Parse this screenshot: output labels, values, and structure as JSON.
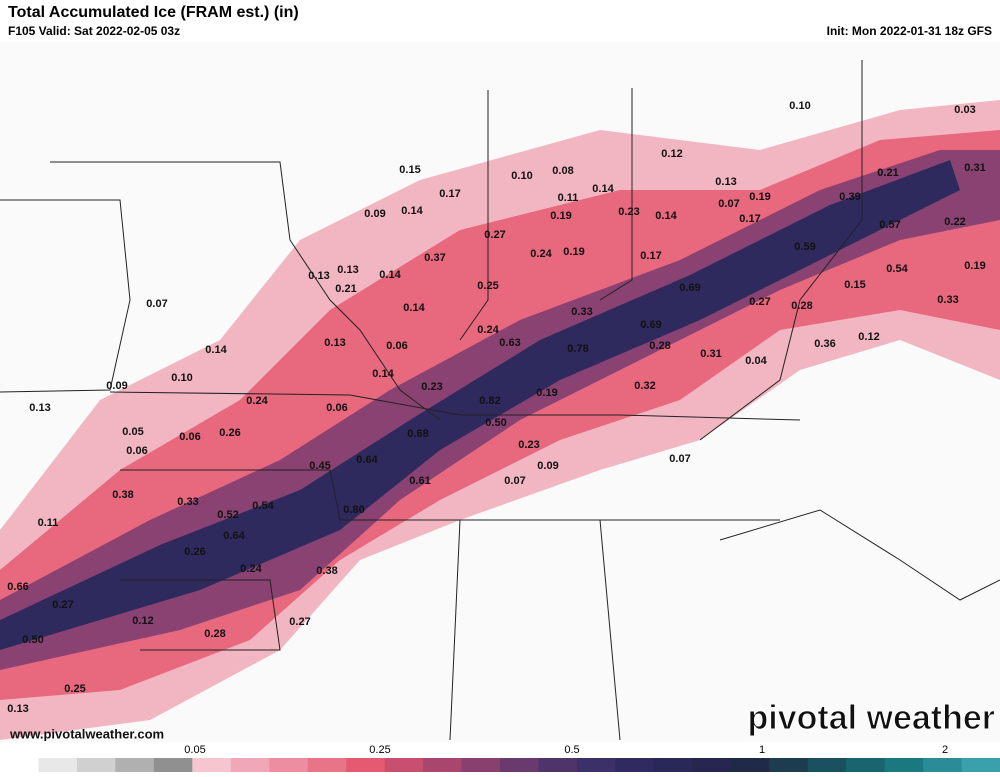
{
  "header": {
    "title": "Total Accumulated Ice (FRAM est.) (in)",
    "valid": "F105 Valid: Sat 2022-02-05 03z",
    "init": "Init: Mon 2022-01-31 18z GFS"
  },
  "map": {
    "labels": [
      "0.10",
      "0.03",
      "0.12",
      "0.15",
      "0.10",
      "0.08",
      "0.14",
      "0.13",
      "0.21",
      "0.31",
      "0.17",
      "0.11",
      "0.07",
      "0.19",
      "0.39",
      "0.09",
      "0.14",
      "0.19",
      "0.23",
      "0.14",
      "0.17",
      "0.57",
      "0.22",
      "0.27",
      "0.59",
      "0.37",
      "0.24",
      "0.19",
      "0.17",
      "0.13",
      "0.13",
      "0.14",
      "0.54",
      "0.19",
      "0.21",
      "0.25",
      "0.69",
      "0.15",
      "0.07",
      "0.14",
      "0.27",
      "0.28",
      "0.33",
      "0.33",
      "0.24",
      "0.69",
      "0.13",
      "0.06",
      "0.63",
      "0.28",
      "0.12",
      "0.14",
      "0.78",
      "0.36",
      "0.31",
      "0.04",
      "0.14",
      "0.10",
      "0.09",
      "0.23",
      "0.32",
      "0.19",
      "0.24",
      "0.06",
      "0.82",
      "0.13",
      "0.50",
      "0.05",
      "0.06",
      "0.26",
      "0.68",
      "0.06",
      "0.23",
      "0.07",
      "0.45",
      "0.64",
      "0.09",
      "0.61",
      "0.07",
      "0.38",
      "0.33",
      "0.54",
      "0.52",
      "0.80",
      "0.11",
      "0.64",
      "0.26",
      "0.24",
      "0.38",
      "0.66",
      "0.27",
      "0.12",
      "0.27",
      "0.28",
      "0.50",
      "0.25",
      "0.13"
    ]
  },
  "footer": {
    "website": "www.pivotalweather.com",
    "watermark": "pivotal weather"
  },
  "colorbar": {
    "ticks": [
      "0.05",
      "0.25",
      "0.5",
      "1",
      "2"
    ],
    "colors": [
      "#ffffff",
      "#e8e8e8",
      "#d0d0d0",
      "#b0b0b0",
      "#909090",
      "#f5c6d0",
      "#f0a8b8",
      "#ec8ea0",
      "#e87488",
      "#e45a70",
      "#c8506e",
      "#a8466e",
      "#88406e",
      "#6a3a6e",
      "#4e3468",
      "#3c3068",
      "#302a60",
      "#2a2858",
      "#262650",
      "#1f2a48",
      "#1c3c50",
      "#1a5060",
      "#1a6470",
      "#1c7880",
      "#2a8c96",
      "#3aa0aa"
    ]
  }
}
